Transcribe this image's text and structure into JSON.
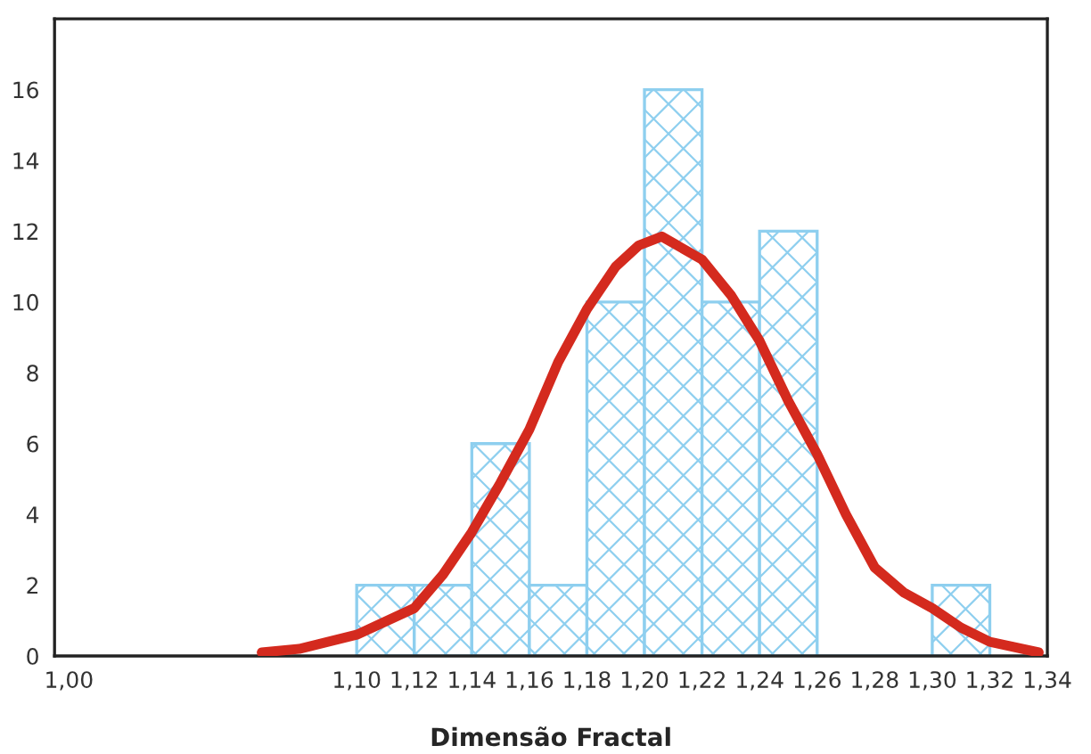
{
  "chart_data": {
    "type": "histogram",
    "xlabel": "Dimensão Fractal",
    "bins": [
      1.1,
      1.12,
      1.14,
      1.16,
      1.18,
      1.2,
      1.22,
      1.24,
      1.26,
      1.28,
      1.3,
      1.32
    ],
    "values": [
      2,
      2,
      6,
      2,
      10,
      16,
      10,
      12,
      0,
      0,
      2
    ],
    "color": "#8ecfef",
    "series": [
      {
        "type": "line",
        "color": "#d42a1e",
        "x": [
          1.067,
          1.08,
          1.1,
          1.12,
          1.13,
          1.14,
          1.15,
          1.16,
          1.17,
          1.18,
          1.19,
          1.198,
          1.206,
          1.22,
          1.23,
          1.24,
          1.25,
          1.26,
          1.27,
          1.28,
          1.29,
          1.3,
          1.31,
          1.32,
          1.337
        ],
        "values": [
          0.1,
          0.2,
          0.6,
          1.35,
          2.3,
          3.5,
          4.9,
          6.4,
          8.3,
          9.8,
          11.0,
          11.6,
          11.85,
          11.2,
          10.2,
          8.9,
          7.2,
          5.7,
          4.0,
          2.5,
          1.8,
          1.35,
          0.8,
          0.4,
          0.1
        ]
      }
    ],
    "xlim": [
      0.995,
      1.34
    ],
    "ylim": [
      0,
      18
    ],
    "xticks": [
      {
        "value": 1.0,
        "label": "1,00"
      },
      {
        "value": 1.1,
        "label": "1,10"
      },
      {
        "value": 1.12,
        "label": "1,12"
      },
      {
        "value": 1.14,
        "label": "1,14"
      },
      {
        "value": 1.16,
        "label": "1,16"
      },
      {
        "value": 1.18,
        "label": "1,18"
      },
      {
        "value": 1.2,
        "label": "1,20"
      },
      {
        "value": 1.22,
        "label": "1,22"
      },
      {
        "value": 1.24,
        "label": "1,24"
      },
      {
        "value": 1.26,
        "label": "1,26"
      },
      {
        "value": 1.28,
        "label": "1,28"
      },
      {
        "value": 1.3,
        "label": "1,30"
      },
      {
        "value": 1.32,
        "label": "1,32"
      },
      {
        "value": 1.34,
        "label": "1,34"
      }
    ],
    "yticks": [
      0,
      2,
      4,
      6,
      8,
      10,
      12,
      14,
      16
    ],
    "grid": false,
    "legend": false
  }
}
